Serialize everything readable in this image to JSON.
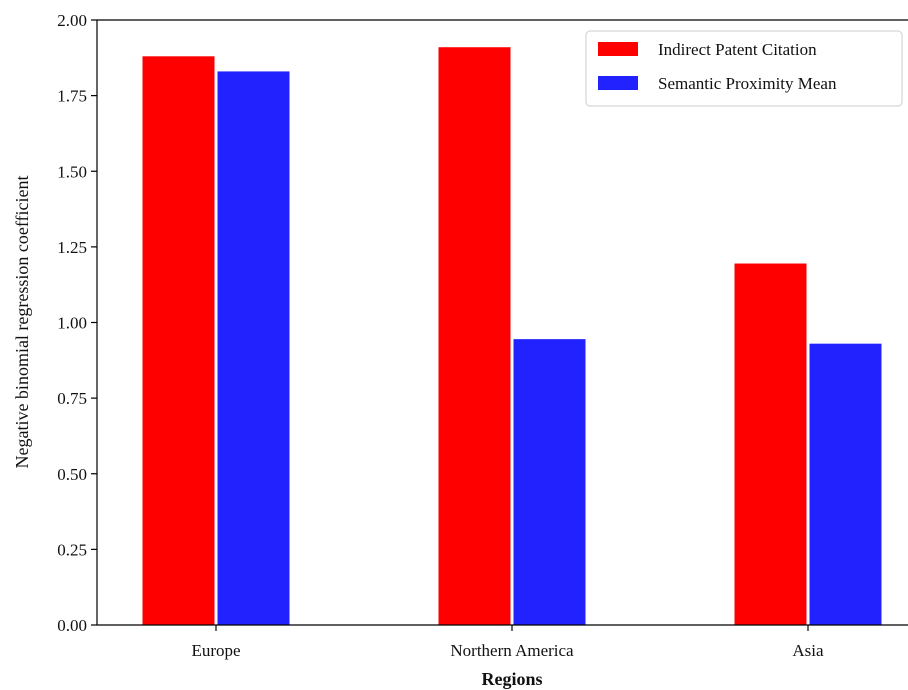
{
  "chart_data": {
    "type": "bar",
    "categories": [
      "Europe",
      "Northern America",
      "Asia"
    ],
    "series": [
      {
        "name": "Indirect Patent Citation",
        "color": "#ff0000",
        "values": [
          1.88,
          1.91,
          1.195
        ]
      },
      {
        "name": "Semantic Proximity Mean",
        "color": "#2222ff",
        "values": [
          1.83,
          0.945,
          0.93
        ]
      }
    ],
    "title": "",
    "xlabel": "Regions",
    "ylabel": "Negative binomial regression coefficient",
    "ylim": [
      0,
      2.0
    ],
    "yticks": [
      "0.00",
      "0.25",
      "0.50",
      "0.75",
      "1.00",
      "1.25",
      "1.50",
      "1.75",
      "2.00"
    ],
    "grid": false,
    "legend_position": "top-right"
  }
}
